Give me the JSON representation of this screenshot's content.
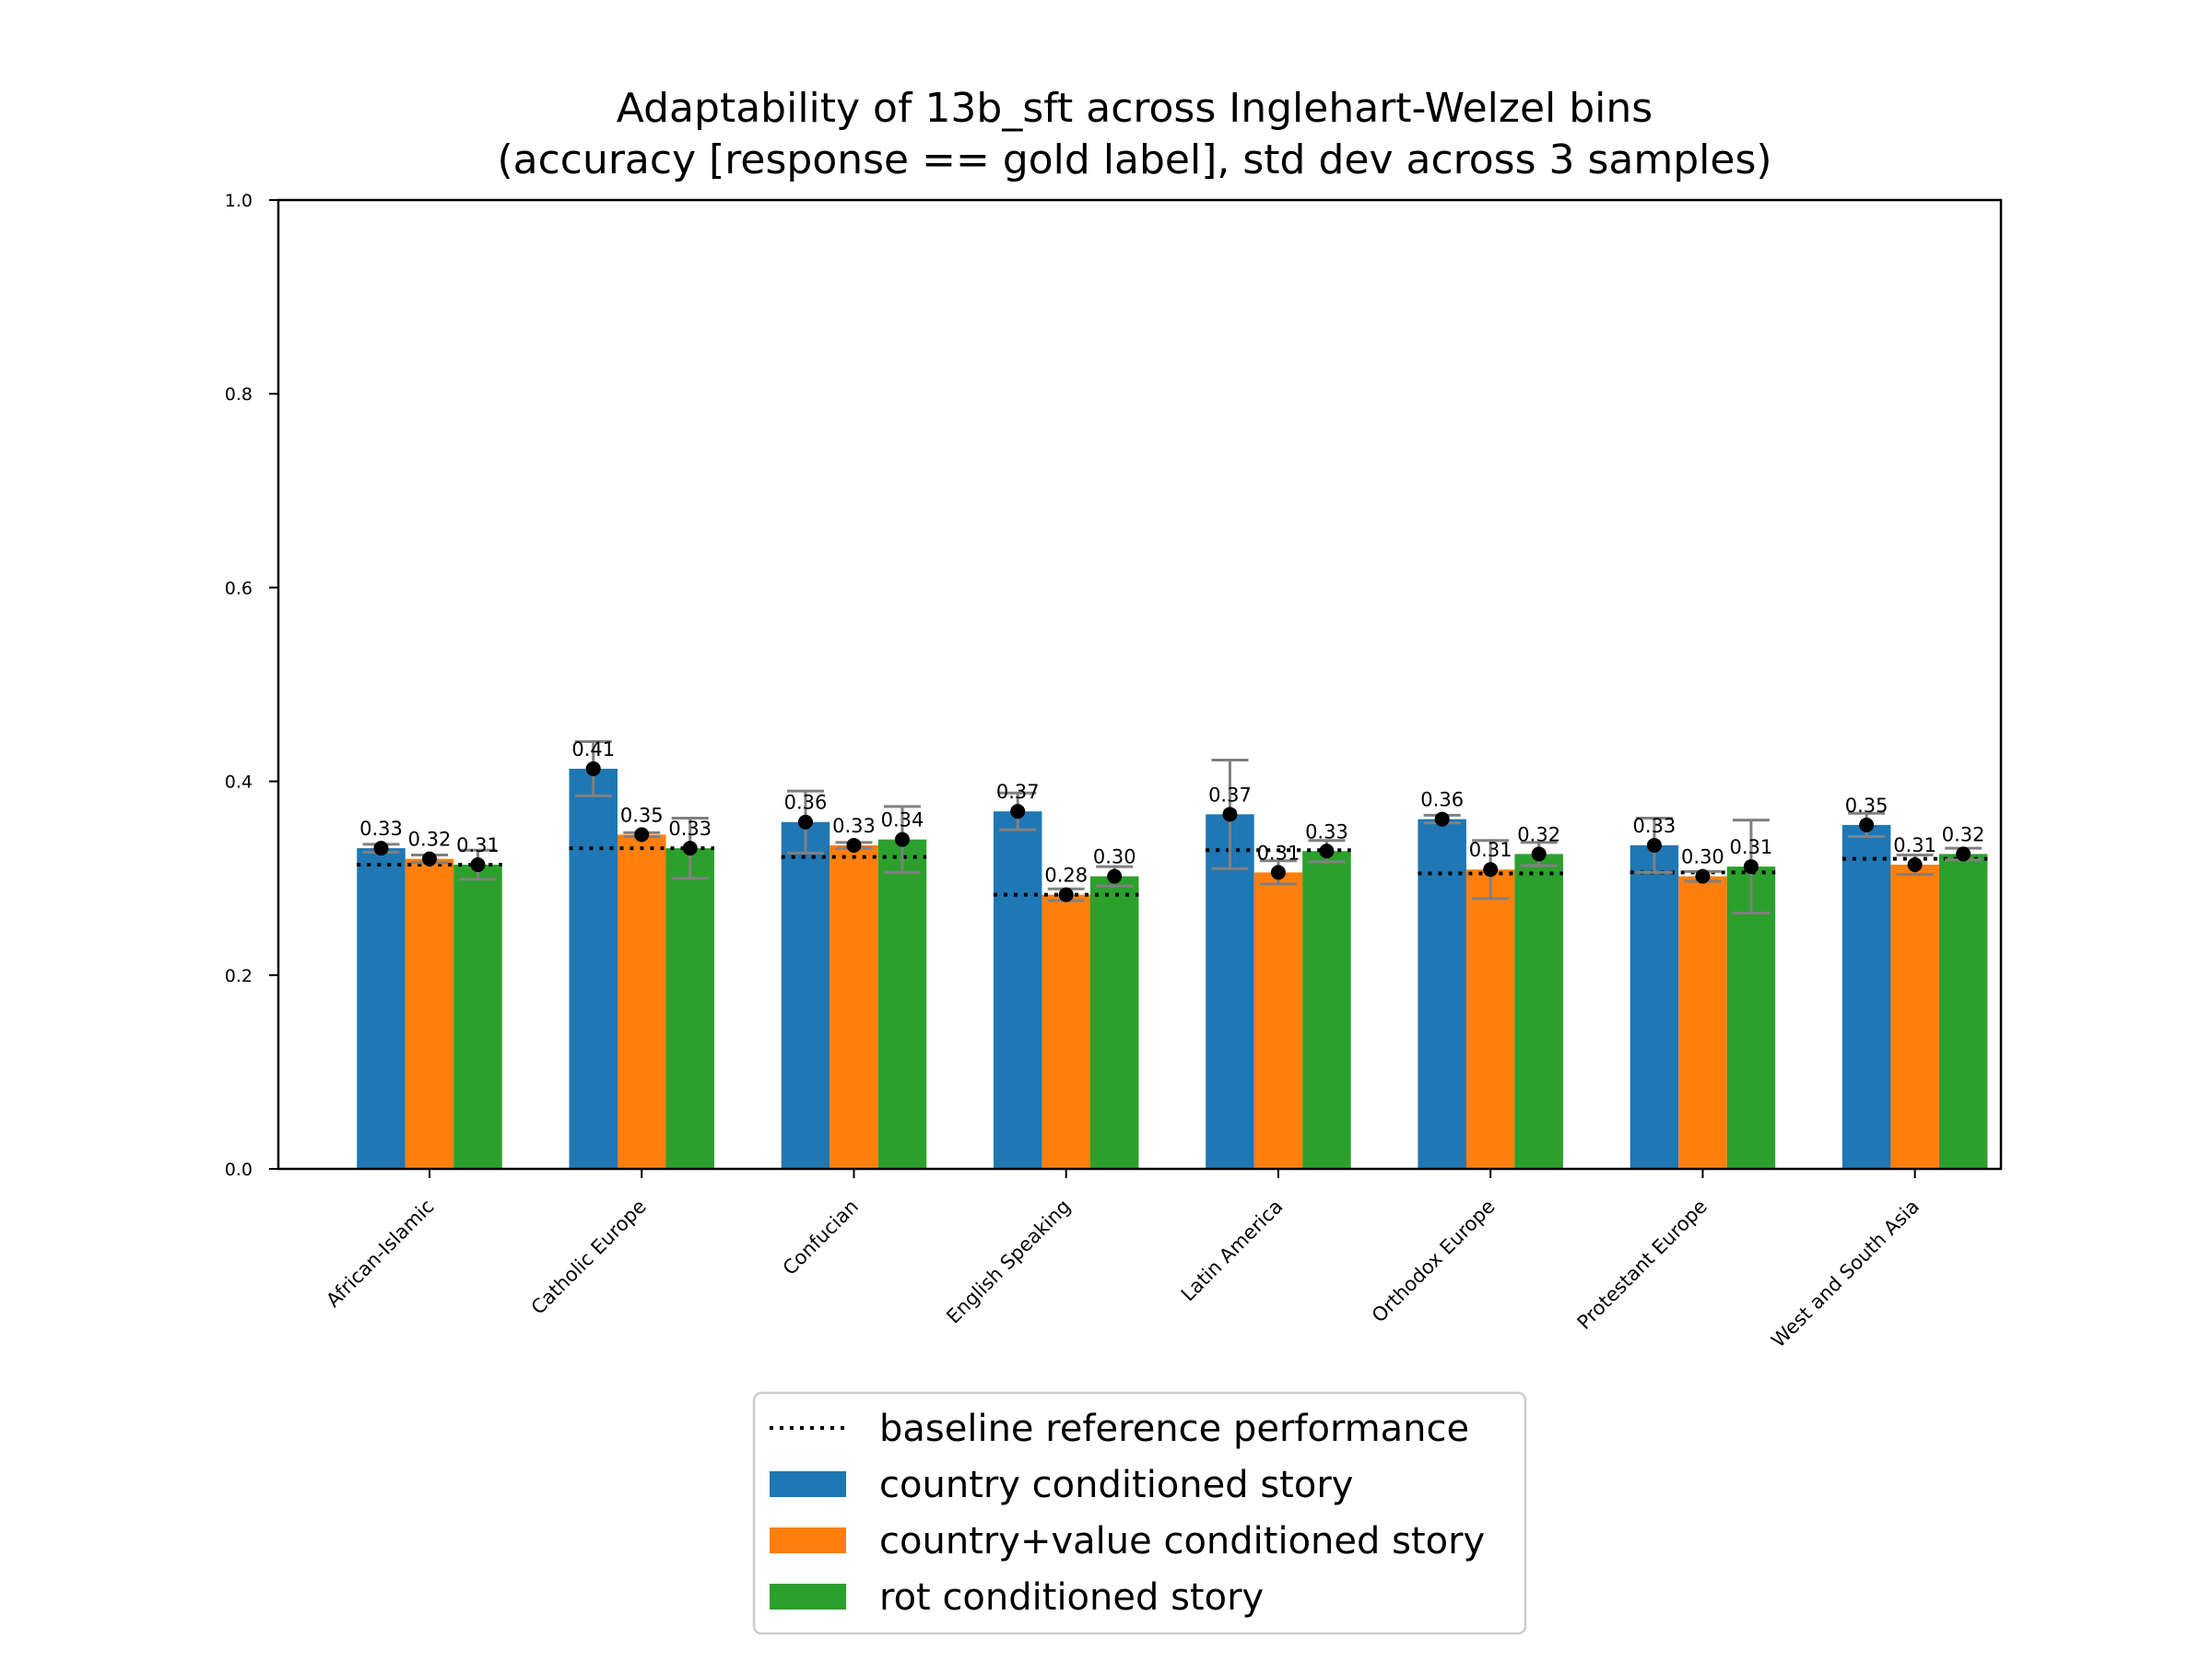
{
  "chart_data": {
    "type": "bar",
    "title": "Adaptability of 13b_sft across Inglehart-Welzel bins",
    "subtitle": "(accuracy [response == gold label], std dev across 3 samples)",
    "xlabel": "",
    "ylabel": "",
    "ylim": [
      0,
      1.0
    ],
    "yticks": [
      "0.0",
      "0.2",
      "0.4",
      "0.6",
      "0.8",
      "1.0"
    ],
    "grid": false,
    "legend_position": "bottom-center",
    "categories": [
      "African-Islamic",
      "Catholic Europe",
      "Confucian",
      "English Speaking",
      "Latin America",
      "Orthodox Europe",
      "Protestant Europe",
      "West and South Asia"
    ],
    "series": [
      {
        "name": "country conditioned story",
        "color": "#1f77b4",
        "values": [
          0.331,
          0.413,
          0.358,
          0.369,
          0.366,
          0.361,
          0.334,
          0.355
        ],
        "error": [
          0.004,
          0.028,
          0.032,
          0.019,
          0.056,
          0.004,
          0.028,
          0.012
        ],
        "labels": [
          "0.33",
          "0.41",
          "0.36",
          "0.37",
          "0.37",
          "0.36",
          "0.33",
          "0.35"
        ]
      },
      {
        "name": "country+value conditioned story",
        "color": "#ff7f0e",
        "values": [
          0.32,
          0.345,
          0.334,
          0.283,
          0.306,
          0.309,
          0.302,
          0.314
        ],
        "error": [
          0.004,
          0.002,
          0.003,
          0.006,
          0.012,
          0.03,
          0.005,
          0.01
        ],
        "labels": [
          "0.32",
          "0.35",
          "0.33",
          "0.28",
          "0.31",
          "0.31",
          "0.30",
          "0.31"
        ]
      },
      {
        "name": "rot conditioned story",
        "color": "#2ca02c",
        "values": [
          0.314,
          0.331,
          0.34,
          0.302,
          0.328,
          0.325,
          0.312,
          0.325
        ],
        "error": [
          0.015,
          0.031,
          0.034,
          0.01,
          0.011,
          0.012,
          0.048,
          0.006
        ],
        "labels": [
          "0.31",
          "0.33",
          "0.34",
          "0.30",
          "0.33",
          "0.32",
          "0.31",
          "0.32"
        ]
      }
    ],
    "baseline": {
      "name": "baseline reference performance",
      "values": [
        0.314,
        0.331,
        0.322,
        0.283,
        0.329,
        0.305,
        0.306,
        0.32
      ]
    }
  }
}
